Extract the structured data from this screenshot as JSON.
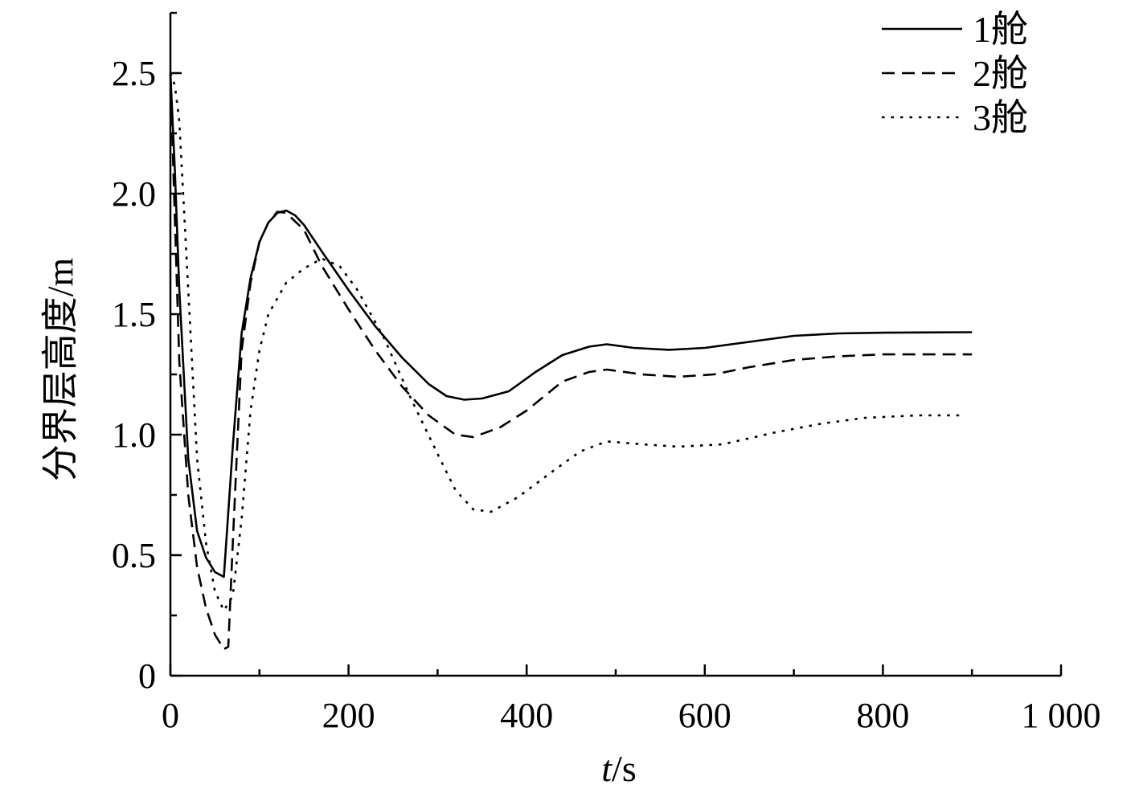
{
  "chart_data": {
    "type": "line",
    "title": "",
    "xlabel_italic": "t",
    "xlabel_unit": "/s",
    "ylabel": "分界层高度/m",
    "xlim": [
      0,
      1000
    ],
    "ylim": [
      0,
      2.75
    ],
    "x_ticks": [
      0,
      200,
      400,
      600,
      800,
      1000
    ],
    "x_tick_labels": [
      "0",
      "200",
      "400",
      "600",
      "800",
      "1 000"
    ],
    "x_minor_ticks": [
      100,
      300,
      500,
      700,
      900
    ],
    "y_ticks": [
      0,
      0.5,
      1.0,
      1.5,
      2.0,
      2.5
    ],
    "y_tick_labels": [
      "0",
      "0.5",
      "1.0",
      "1.5",
      "2.0",
      "2.5"
    ],
    "y_minor_ticks": [
      0.25,
      0.75,
      1.25,
      1.75,
      2.25,
      2.75
    ],
    "grid": false,
    "legend_position": "top-right",
    "series": [
      {
        "name": "1舱",
        "style": "solid",
        "points": [
          [
            0,
            2.5
          ],
          [
            5,
            2.1
          ],
          [
            10,
            1.6
          ],
          [
            20,
            0.9
          ],
          [
            30,
            0.6
          ],
          [
            40,
            0.49
          ],
          [
            50,
            0.43
          ],
          [
            60,
            0.41
          ],
          [
            70,
            0.95
          ],
          [
            80,
            1.42
          ],
          [
            90,
            1.65
          ],
          [
            100,
            1.8
          ],
          [
            110,
            1.88
          ],
          [
            120,
            1.92
          ],
          [
            130,
            1.93
          ],
          [
            140,
            1.91
          ],
          [
            150,
            1.87
          ],
          [
            170,
            1.76
          ],
          [
            200,
            1.6
          ],
          [
            230,
            1.45
          ],
          [
            260,
            1.32
          ],
          [
            290,
            1.21
          ],
          [
            310,
            1.16
          ],
          [
            330,
            1.145
          ],
          [
            350,
            1.15
          ],
          [
            380,
            1.18
          ],
          [
            410,
            1.26
          ],
          [
            440,
            1.33
          ],
          [
            470,
            1.365
          ],
          [
            490,
            1.375
          ],
          [
            520,
            1.36
          ],
          [
            560,
            1.352
          ],
          [
            600,
            1.36
          ],
          [
            650,
            1.385
          ],
          [
            700,
            1.41
          ],
          [
            750,
            1.42
          ],
          [
            800,
            1.423
          ],
          [
            900,
            1.425
          ]
        ]
      },
      {
        "name": "2舱",
        "style": "dashed",
        "points": [
          [
            0,
            2.5
          ],
          [
            5,
            1.9
          ],
          [
            10,
            1.3
          ],
          [
            20,
            0.75
          ],
          [
            30,
            0.45
          ],
          [
            40,
            0.28
          ],
          [
            50,
            0.17
          ],
          [
            60,
            0.11
          ],
          [
            65,
            0.12
          ],
          [
            70,
            0.55
          ],
          [
            80,
            1.35
          ],
          [
            90,
            1.63
          ],
          [
            100,
            1.8
          ],
          [
            110,
            1.88
          ],
          [
            120,
            1.925
          ],
          [
            130,
            1.92
          ],
          [
            150,
            1.85
          ],
          [
            170,
            1.7
          ],
          [
            200,
            1.52
          ],
          [
            230,
            1.35
          ],
          [
            260,
            1.2
          ],
          [
            290,
            1.08
          ],
          [
            320,
            1.0
          ],
          [
            340,
            0.99
          ],
          [
            370,
            1.03
          ],
          [
            400,
            1.1
          ],
          [
            440,
            1.22
          ],
          [
            470,
            1.26
          ],
          [
            490,
            1.27
          ],
          [
            530,
            1.25
          ],
          [
            570,
            1.24
          ],
          [
            610,
            1.25
          ],
          [
            650,
            1.28
          ],
          [
            700,
            1.31
          ],
          [
            750,
            1.325
          ],
          [
            800,
            1.333
          ],
          [
            900,
            1.333
          ]
        ]
      },
      {
        "name": "3舱",
        "style": "dotted",
        "points": [
          [
            0,
            2.5
          ],
          [
            5,
            2.45
          ],
          [
            10,
            2.3
          ],
          [
            20,
            1.6
          ],
          [
            30,
            0.9
          ],
          [
            40,
            0.55
          ],
          [
            50,
            0.35
          ],
          [
            60,
            0.27
          ],
          [
            70,
            0.33
          ],
          [
            80,
            0.65
          ],
          [
            90,
            1.1
          ],
          [
            100,
            1.35
          ],
          [
            110,
            1.5
          ],
          [
            130,
            1.63
          ],
          [
            150,
            1.69
          ],
          [
            170,
            1.73
          ],
          [
            190,
            1.7
          ],
          [
            210,
            1.6
          ],
          [
            240,
            1.4
          ],
          [
            270,
            1.15
          ],
          [
            300,
            0.92
          ],
          [
            320,
            0.77
          ],
          [
            340,
            0.69
          ],
          [
            360,
            0.68
          ],
          [
            390,
            0.74
          ],
          [
            430,
            0.85
          ],
          [
            460,
            0.93
          ],
          [
            490,
            0.972
          ],
          [
            530,
            0.96
          ],
          [
            570,
            0.95
          ],
          [
            620,
            0.96
          ],
          [
            680,
            1.01
          ],
          [
            730,
            1.045
          ],
          [
            780,
            1.07
          ],
          [
            840,
            1.08
          ],
          [
            890,
            1.08
          ]
        ]
      }
    ]
  }
}
